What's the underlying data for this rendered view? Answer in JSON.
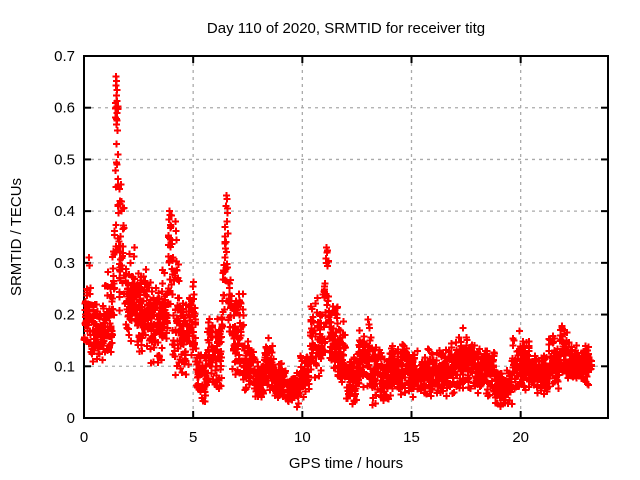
{
  "chart_data": {
    "type": "scatter",
    "title": "Day 110 of 2020, SRMTID for receiver titg",
    "xlabel": "GPS time / hours",
    "ylabel": "SRMTID / TECUs",
    "xlim": [
      0,
      24
    ],
    "ylim": [
      0,
      0.7
    ],
    "xtick_values": [
      0,
      5,
      10,
      15,
      20
    ],
    "xtick_labels": [
      "0",
      "5",
      "10",
      "15",
      "20"
    ],
    "ytick_values": [
      0,
      0.1,
      0.2,
      0.3,
      0.4,
      0.5,
      0.6,
      0.7
    ],
    "ytick_labels": [
      "0",
      "0.1",
      "0.2",
      "0.3",
      "0.4",
      "0.5",
      "0.6",
      "0.7"
    ],
    "grid": true,
    "legend": null,
    "x_data_range": [
      0,
      23.25
    ],
    "marker": {
      "shape": "plus",
      "color": "#ff0000",
      "size": 7,
      "stroke_width": 2
    },
    "grid_color": "#aaaaaa",
    "border_color": "#000000",
    "background_color": "#ffffff",
    "segments_columns": [
      "x_start",
      "x_end",
      "count",
      "y_min",
      "y_max",
      "distribution"
    ],
    "segments": [
      [
        0.0,
        0.35,
        45,
        0.12,
        0.28,
        "tri"
      ],
      [
        0.35,
        0.95,
        75,
        0.1,
        0.24,
        "tri"
      ],
      [
        0.95,
        1.3,
        45,
        0.1,
        0.3,
        "tri"
      ],
      [
        1.3,
        1.42,
        15,
        0.18,
        0.38,
        "uni"
      ],
      [
        1.42,
        1.58,
        20,
        0.32,
        0.62,
        "uni"
      ],
      [
        1.58,
        1.85,
        32,
        0.2,
        0.45,
        "tri"
      ],
      [
        1.85,
        2.15,
        40,
        0.14,
        0.32,
        "tri"
      ],
      [
        2.15,
        2.45,
        40,
        0.13,
        0.33,
        "tri"
      ],
      [
        2.45,
        3.05,
        85,
        0.12,
        0.3,
        "tri"
      ],
      [
        3.05,
        3.6,
        75,
        0.1,
        0.27,
        "tri"
      ],
      [
        3.6,
        3.86,
        36,
        0.15,
        0.3,
        "tri"
      ],
      [
        3.86,
        4.05,
        24,
        0.22,
        0.4,
        "uni"
      ],
      [
        4.05,
        4.35,
        40,
        0.06,
        0.38,
        "tri"
      ],
      [
        4.35,
        4.8,
        56,
        0.08,
        0.25,
        "tri"
      ],
      [
        4.8,
        5.15,
        42,
        0.1,
        0.28,
        "tri"
      ],
      [
        5.15,
        5.65,
        62,
        0.02,
        0.15,
        "tri"
      ],
      [
        5.65,
        6.3,
        80,
        0.05,
        0.2,
        "tri"
      ],
      [
        6.3,
        6.45,
        18,
        0.15,
        0.3,
        "uni"
      ],
      [
        6.45,
        6.62,
        16,
        0.25,
        0.43,
        "uni"
      ],
      [
        6.62,
        6.8,
        20,
        0.15,
        0.3,
        "tri"
      ],
      [
        6.8,
        7.3,
        62,
        0.07,
        0.26,
        "tri"
      ],
      [
        7.3,
        7.8,
        65,
        0.05,
        0.15,
        "tri"
      ],
      [
        7.8,
        8.25,
        60,
        0.03,
        0.12,
        "tri"
      ],
      [
        8.25,
        8.7,
        60,
        0.05,
        0.15,
        "tri"
      ],
      [
        8.7,
        9.3,
        75,
        0.03,
        0.11,
        "tri"
      ],
      [
        9.3,
        9.85,
        70,
        0.02,
        0.09,
        "tri"
      ],
      [
        9.85,
        10.35,
        62,
        0.04,
        0.13,
        "tri"
      ],
      [
        10.35,
        10.9,
        68,
        0.07,
        0.24,
        "tri"
      ],
      [
        10.9,
        11.05,
        18,
        0.12,
        0.26,
        "uni"
      ],
      [
        11.05,
        11.22,
        14,
        0.18,
        0.33,
        "uni"
      ],
      [
        11.22,
        11.6,
        46,
        0.08,
        0.24,
        "tri"
      ],
      [
        11.6,
        12.0,
        50,
        0.05,
        0.2,
        "tri"
      ],
      [
        12.0,
        12.6,
        75,
        0.02,
        0.13,
        "tri"
      ],
      [
        12.6,
        13.2,
        75,
        0.05,
        0.18,
        "tri"
      ],
      [
        13.2,
        14.0,
        100,
        0.02,
        0.14,
        "tri"
      ],
      [
        14.0,
        14.9,
        112,
        0.04,
        0.15,
        "tri"
      ],
      [
        14.9,
        16.0,
        137,
        0.04,
        0.14,
        "tri"
      ],
      [
        16.0,
        17.0,
        125,
        0.04,
        0.15,
        "tri"
      ],
      [
        17.0,
        17.9,
        112,
        0.05,
        0.17,
        "tri"
      ],
      [
        17.9,
        18.8,
        112,
        0.04,
        0.14,
        "tri"
      ],
      [
        18.8,
        19.6,
        100,
        0.02,
        0.1,
        "tri"
      ],
      [
        19.6,
        20.4,
        100,
        0.05,
        0.16,
        "tri"
      ],
      [
        20.4,
        21.3,
        112,
        0.04,
        0.13,
        "tri"
      ],
      [
        21.3,
        21.75,
        56,
        0.05,
        0.17,
        "tri"
      ],
      [
        21.75,
        22.15,
        50,
        0.07,
        0.18,
        "tri"
      ],
      [
        22.15,
        23.25,
        137,
        0.06,
        0.15,
        "tri"
      ]
    ],
    "peak_points": [
      [
        0.22,
        0.31
      ],
      [
        0.25,
        0.295
      ],
      [
        1.46,
        0.66
      ],
      [
        1.48,
        0.652
      ],
      [
        1.47,
        0.643
      ],
      [
        1.5,
        0.634
      ],
      [
        1.49,
        0.624
      ],
      [
        1.51,
        0.613
      ],
      [
        1.46,
        0.6
      ],
      [
        1.52,
        0.59
      ],
      [
        1.5,
        0.575
      ],
      [
        1.53,
        0.556
      ],
      [
        1.49,
        0.53
      ],
      [
        1.55,
        0.51
      ],
      [
        1.52,
        0.49
      ],
      [
        1.56,
        0.462
      ],
      [
        1.62,
        0.443
      ],
      [
        1.7,
        0.452
      ],
      [
        1.66,
        0.42
      ],
      [
        1.72,
        0.4
      ],
      [
        2.32,
        0.33
      ],
      [
        2.3,
        0.312
      ],
      [
        3.92,
        0.4
      ],
      [
        3.95,
        0.393
      ],
      [
        3.9,
        0.384
      ],
      [
        3.97,
        0.373
      ],
      [
        4.18,
        0.38
      ],
      [
        4.22,
        0.362
      ],
      [
        6.52,
        0.43
      ],
      [
        6.55,
        0.423
      ],
      [
        6.5,
        0.41
      ],
      [
        6.57,
        0.396
      ],
      [
        6.54,
        0.38
      ],
      [
        11.1,
        0.33
      ],
      [
        11.13,
        0.32
      ],
      [
        11.08,
        0.308
      ],
      [
        11.15,
        0.294
      ],
      [
        11.62,
        0.215
      ],
      [
        11.58,
        0.2
      ],
      [
        13.0,
        0.19
      ],
      [
        13.05,
        0.181
      ],
      [
        8.45,
        0.155
      ],
      [
        17.35,
        0.174
      ],
      [
        19.95,
        0.168
      ],
      [
        21.9,
        0.178
      ],
      [
        22.0,
        0.17
      ]
    ]
  }
}
